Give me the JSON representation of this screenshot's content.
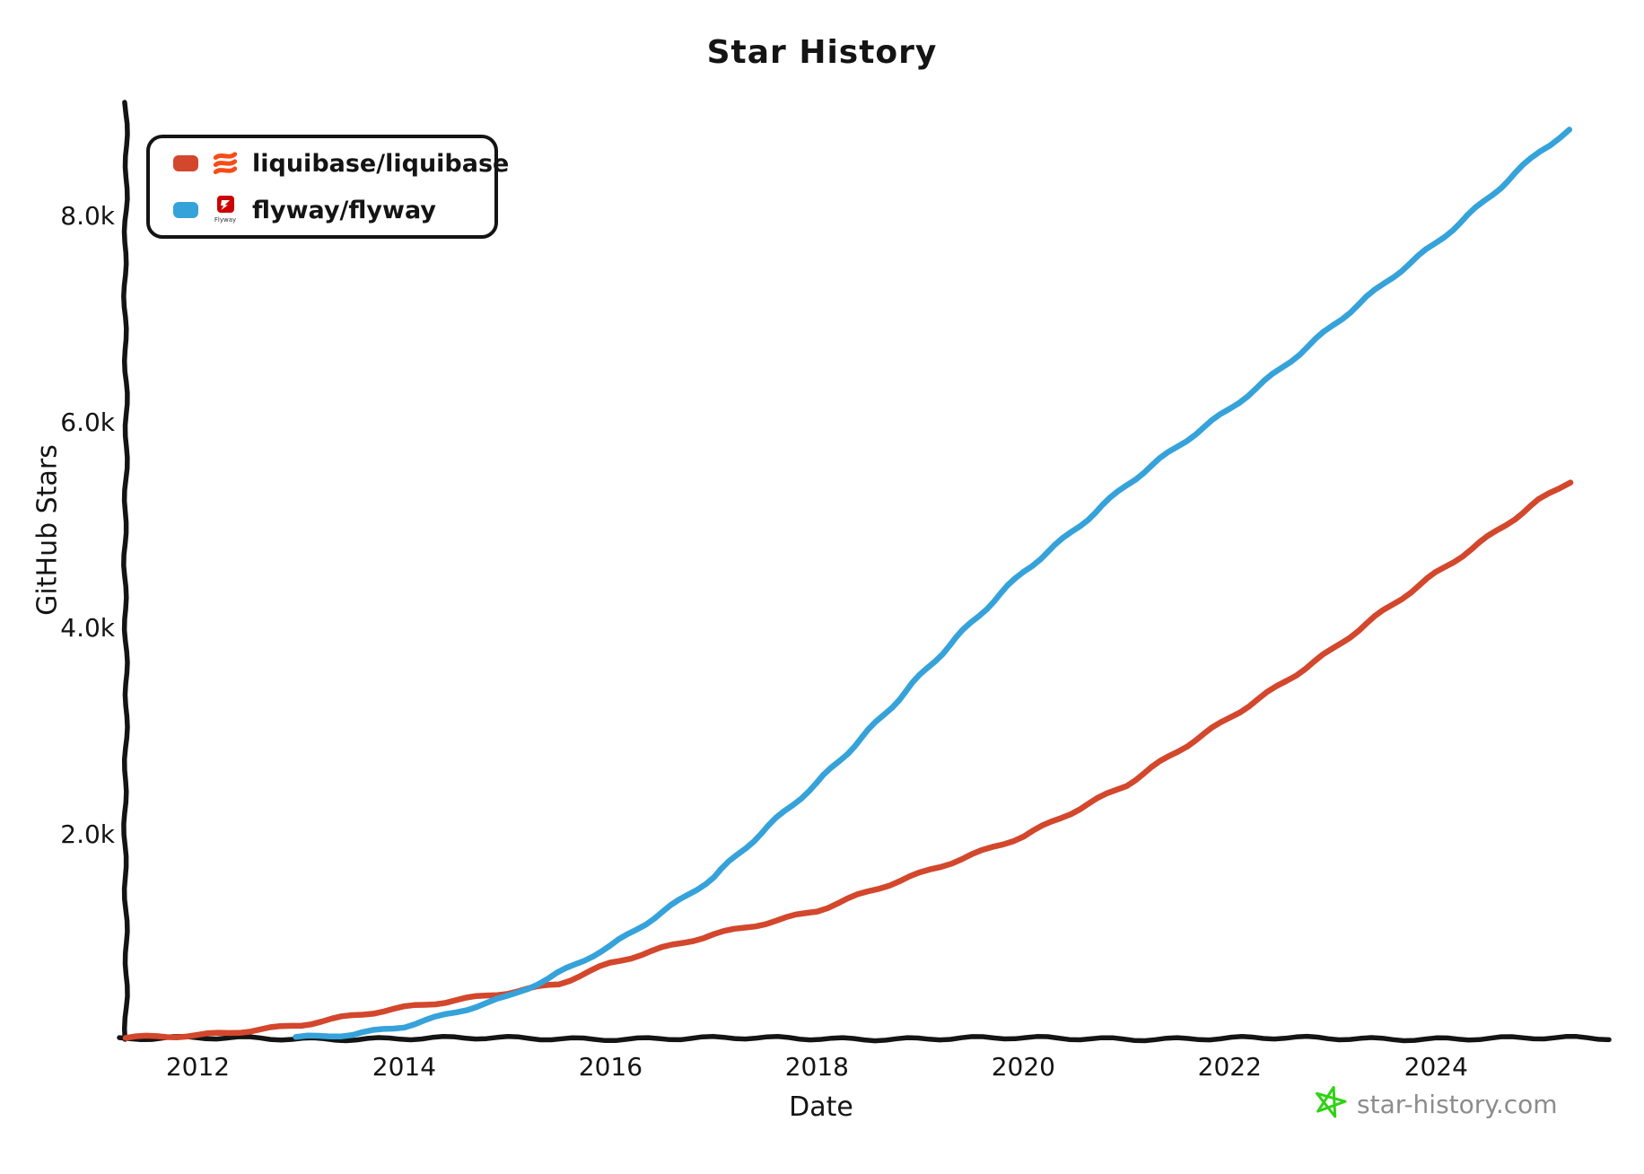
{
  "title": "Star History",
  "legend": {
    "items": [
      {
        "label": "liquibase/liquibase",
        "swatch_color": "#d3472c",
        "icon": "liquibase-coil-icon"
      },
      {
        "label": "flyway/flyway",
        "swatch_color": "#36a2da",
        "icon": "flyway-logo-icon",
        "icon_caption": "Flyway"
      }
    ]
  },
  "footer": {
    "brand": "star-history.com",
    "star_icon": "green-star-icon",
    "star_color": "#2fd214",
    "text_color": "#8c8c8c"
  },
  "chart_data": {
    "type": "line",
    "title": "Star History",
    "xlabel": "Date",
    "ylabel": "GitHub Stars",
    "grid": false,
    "legend_position": "top-left",
    "xlim": [
      2011.3,
      2025.65
    ],
    "ylim": [
      0,
      9100
    ],
    "x_ticks": [
      2012,
      2014,
      2016,
      2018,
      2020,
      2022,
      2024
    ],
    "x_tick_labels": [
      "2012",
      "2014",
      "2016",
      "2018",
      "2020",
      "2022",
      "2024"
    ],
    "y_ticks": [
      2000,
      4000,
      6000,
      8000
    ],
    "y_tick_labels": [
      "2.0k",
      "4.0k",
      "6.0k",
      "8.0k"
    ],
    "axis_color": "#141414",
    "series": [
      {
        "name": "liquibase/liquibase",
        "color": "#d3472c",
        "points": [
          [
            2011.3,
            0
          ],
          [
            2012,
            60
          ],
          [
            2013,
            160
          ],
          [
            2014,
            320
          ],
          [
            2015,
            480
          ],
          [
            2015.5,
            560
          ],
          [
            2016,
            750
          ],
          [
            2017,
            1040
          ],
          [
            2018,
            1270
          ],
          [
            2019,
            1620
          ],
          [
            2020,
            2000
          ],
          [
            2021,
            2480
          ],
          [
            2022,
            3150
          ],
          [
            2023,
            3800
          ],
          [
            2024,
            4550
          ],
          [
            2025,
            5250
          ],
          [
            2025.3,
            5430
          ]
        ]
      },
      {
        "name": "flyway/flyway",
        "color": "#36a2da",
        "points": [
          [
            2012.95,
            0
          ],
          [
            2013.5,
            60
          ],
          [
            2014,
            150
          ],
          [
            2015,
            430
          ],
          [
            2015.4,
            600
          ],
          [
            2016,
            920
          ],
          [
            2017,
            1600
          ],
          [
            2018,
            2500
          ],
          [
            2019,
            3550
          ],
          [
            2020,
            4560
          ],
          [
            2021,
            5400
          ],
          [
            2022,
            6140
          ],
          [
            2023,
            6950
          ],
          [
            2024,
            7750
          ],
          [
            2025,
            8640
          ],
          [
            2025.3,
            8840
          ]
        ]
      }
    ]
  }
}
